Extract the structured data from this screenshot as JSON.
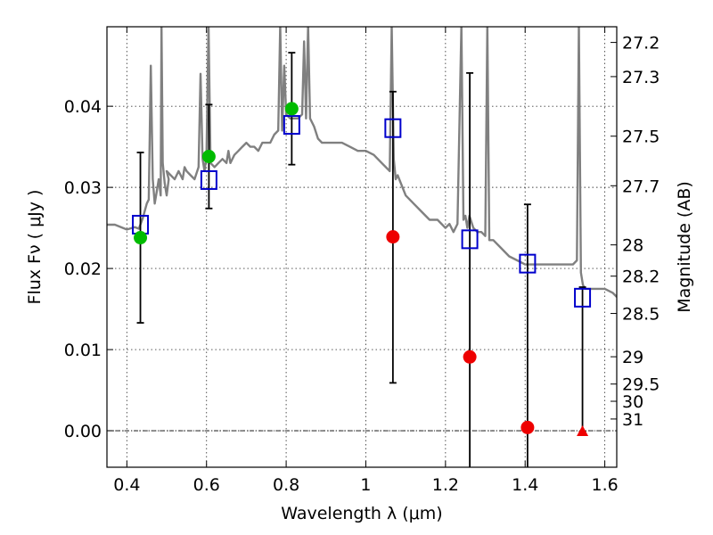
{
  "chart_data": {
    "type": "scatter",
    "xlabel": "Wavelength  λ (μm)",
    "ylabel": "Flux  Fν  ( μJy )",
    "ylabel_right": "Magnitude (AB)",
    "xlim": [
      0.35,
      1.63
    ],
    "ylim": [
      -0.0045,
      0.0498
    ],
    "x_ticks": [
      {
        "value": 0.4,
        "label": "0.4"
      },
      {
        "value": 0.6,
        "label": "0.6"
      },
      {
        "value": 0.8,
        "label": "0.8"
      },
      {
        "value": 1.0,
        "label": "1"
      },
      {
        "value": 1.2,
        "label": "1.2"
      },
      {
        "value": 1.4,
        "label": "1.4"
      },
      {
        "value": 1.6,
        "label": "1.6"
      }
    ],
    "y_ticks": [
      {
        "value": 0.0,
        "label": "0.00"
      },
      {
        "value": 0.01,
        "label": "0.01"
      },
      {
        "value": 0.02,
        "label": "0.02"
      },
      {
        "value": 0.03,
        "label": "0.03"
      },
      {
        "value": 0.04,
        "label": "0.04"
      }
    ],
    "mag_ticks": [
      {
        "value": 27.2,
        "label": "27.2"
      },
      {
        "value": 27.3,
        "label": "27.3"
      },
      {
        "value": 27.5,
        "label": "27.5"
      },
      {
        "value": 27.7,
        "label": "27.7"
      },
      {
        "value": 28,
        "label": "28"
      },
      {
        "value": 28.2,
        "label": "28.2"
      },
      {
        "value": 28.5,
        "label": "28.5"
      },
      {
        "value": 29,
        "label": "29"
      },
      {
        "value": 29.5,
        "label": "29.5"
      },
      {
        "value": 30,
        "label": "30"
      },
      {
        "value": 31,
        "label": "31"
      }
    ],
    "grid": true,
    "zero_line": 0.0,
    "colors": {
      "spectrum": "#808080",
      "model_box": "#0000cc",
      "detection": "#00bb00",
      "nondetection": "#ee0000",
      "errorbar": "#000000"
    },
    "series": [
      {
        "name": "model spectrum",
        "kind": "line",
        "x": [
          0.35,
          0.37,
          0.39,
          0.4,
          0.42,
          0.43,
          0.44,
          0.45,
          0.455,
          0.46,
          0.465,
          0.47,
          0.475,
          0.48,
          0.485,
          0.487,
          0.49,
          0.495,
          0.5,
          0.505,
          0.5,
          0.51,
          0.52,
          0.53,
          0.54,
          0.545,
          0.55,
          0.56,
          0.57,
          0.58,
          0.585,
          0.59,
          0.595,
          0.6,
          0.605,
          0.61,
          0.62,
          0.63,
          0.64,
          0.65,
          0.655,
          0.66,
          0.67,
          0.68,
          0.69,
          0.7,
          0.71,
          0.72,
          0.73,
          0.74,
          0.75,
          0.76,
          0.77,
          0.78,
          0.785,
          0.79,
          0.795,
          0.8,
          0.81,
          0.82,
          0.83,
          0.84,
          0.845,
          0.85,
          0.855,
          0.86,
          0.87,
          0.88,
          0.89,
          0.9,
          0.92,
          0.94,
          0.96,
          0.98,
          1.0,
          1.02,
          1.04,
          1.06,
          1.065,
          1.07,
          1.075,
          1.08,
          1.1,
          1.12,
          1.14,
          1.16,
          1.18,
          1.2,
          1.21,
          1.22,
          1.23,
          1.24,
          1.245,
          1.25,
          1.255,
          1.26,
          1.27,
          1.28,
          1.29,
          1.3,
          1.305,
          1.31,
          1.32,
          1.34,
          1.36,
          1.38,
          1.4,
          1.42,
          1.44,
          1.46,
          1.48,
          1.5,
          1.52,
          1.53,
          1.535,
          1.54,
          1.545,
          1.55,
          1.56,
          1.58,
          1.6,
          1.62,
          1.63
        ],
        "y": [
          0.0254,
          0.0254,
          0.025,
          0.0248,
          0.0251,
          0.0249,
          0.0262,
          0.028,
          0.0285,
          0.045,
          0.031,
          0.028,
          0.0295,
          0.031,
          0.029,
          0.05,
          0.033,
          0.0305,
          0.029,
          0.031,
          0.032,
          0.0315,
          0.031,
          0.032,
          0.031,
          0.0325,
          0.032,
          0.0315,
          0.031,
          0.0325,
          0.044,
          0.0335,
          0.032,
          0.034,
          0.05,
          0.033,
          0.0325,
          0.033,
          0.0335,
          0.033,
          0.0345,
          0.033,
          0.034,
          0.0345,
          0.035,
          0.0355,
          0.035,
          0.035,
          0.0345,
          0.0355,
          0.0355,
          0.0355,
          0.0365,
          0.037,
          0.05,
          0.037,
          0.045,
          0.039,
          0.0385,
          0.0385,
          0.0385,
          0.039,
          0.048,
          0.0385,
          0.05,
          0.0385,
          0.0375,
          0.036,
          0.0355,
          0.0355,
          0.0355,
          0.0355,
          0.035,
          0.0345,
          0.0345,
          0.034,
          0.033,
          0.032,
          0.05,
          0.0335,
          0.031,
          0.0315,
          0.029,
          0.028,
          0.027,
          0.026,
          0.026,
          0.025,
          0.0255,
          0.0245,
          0.0255,
          0.05,
          0.026,
          0.0265,
          0.025,
          0.0265,
          0.025,
          0.0245,
          0.0245,
          0.024,
          0.05,
          0.0235,
          0.0235,
          0.0225,
          0.0215,
          0.021,
          0.0205,
          0.0205,
          0.0205,
          0.0205,
          0.0205,
          0.0205,
          0.0205,
          0.021,
          0.05,
          0.0195,
          0.018,
          0.0175,
          0.0175,
          0.0175,
          0.0175,
          0.017,
          0.0165
        ]
      },
      {
        "name": "model photometry",
        "kind": "open-square",
        "x": [
          0.434,
          0.606,
          0.814,
          1.068,
          1.261,
          1.406,
          1.544
        ],
        "y": [
          0.0254,
          0.0309,
          0.0377,
          0.0373,
          0.0236,
          0.0206,
          0.0164
        ]
      },
      {
        "name": "detections",
        "kind": "filled-circle",
        "x": [
          0.434,
          0.606,
          0.814
        ],
        "y": [
          0.0238,
          0.0338,
          0.0397
        ]
      },
      {
        "name": "non-detections",
        "kind": "filled-circle",
        "x": [
          1.068,
          1.261,
          1.406
        ],
        "y": [
          0.0239,
          0.0091,
          0.0004
        ]
      },
      {
        "name": "upper limit",
        "kind": "triangle",
        "x": [
          1.544
        ],
        "y": [
          -0.0001
        ]
      },
      {
        "name": "error bars",
        "kind": "errorbar",
        "x": [
          0.434,
          0.606,
          0.814,
          1.068,
          1.261,
          1.406,
          1.544
        ],
        "low": [
          0.0133,
          0.0274,
          0.0328,
          0.0059,
          -0.0045,
          -0.0045,
          -0.0001
        ],
        "high": [
          0.0343,
          0.0402,
          0.0466,
          0.0418,
          0.0441,
          0.0279,
          0.0177
        ]
      }
    ]
  }
}
